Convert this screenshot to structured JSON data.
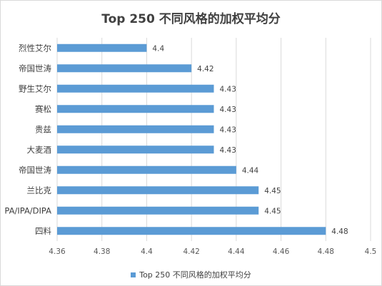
{
  "chart_data": {
    "type": "bar",
    "orientation": "horizontal",
    "title": "Top 250 不同风格的加权平均分",
    "categories": [
      "烈性艾尔",
      "帝国世涛",
      "野生艾尔",
      "赛松",
      "贵兹",
      "大麦酒",
      "帝国世涛",
      "兰比克",
      "PA/IPA/DIPA",
      "四料"
    ],
    "values": [
      4.4,
      4.42,
      4.43,
      4.43,
      4.43,
      4.43,
      4.44,
      4.45,
      4.45,
      4.48
    ],
    "value_labels": [
      "4.4",
      "4.42",
      "4.43",
      "4.43",
      "4.43",
      "4.43",
      "4.44",
      "4.45",
      "4.45",
      "4.48"
    ],
    "series": [
      {
        "name": "Top 250 不同风格的加权平均分",
        "values": [
          4.4,
          4.42,
          4.43,
          4.43,
          4.43,
          4.43,
          4.44,
          4.45,
          4.45,
          4.48
        ]
      }
    ],
    "xlim": [
      4.36,
      4.5
    ],
    "xticks": [
      "4.36",
      "4.38",
      "4.4",
      "4.42",
      "4.44",
      "4.46",
      "4.48",
      "4.5"
    ],
    "grid": "vertical",
    "legend": "bottom",
    "bar_color": "#5b9bd5",
    "grid_color": "#d9d9d9"
  }
}
